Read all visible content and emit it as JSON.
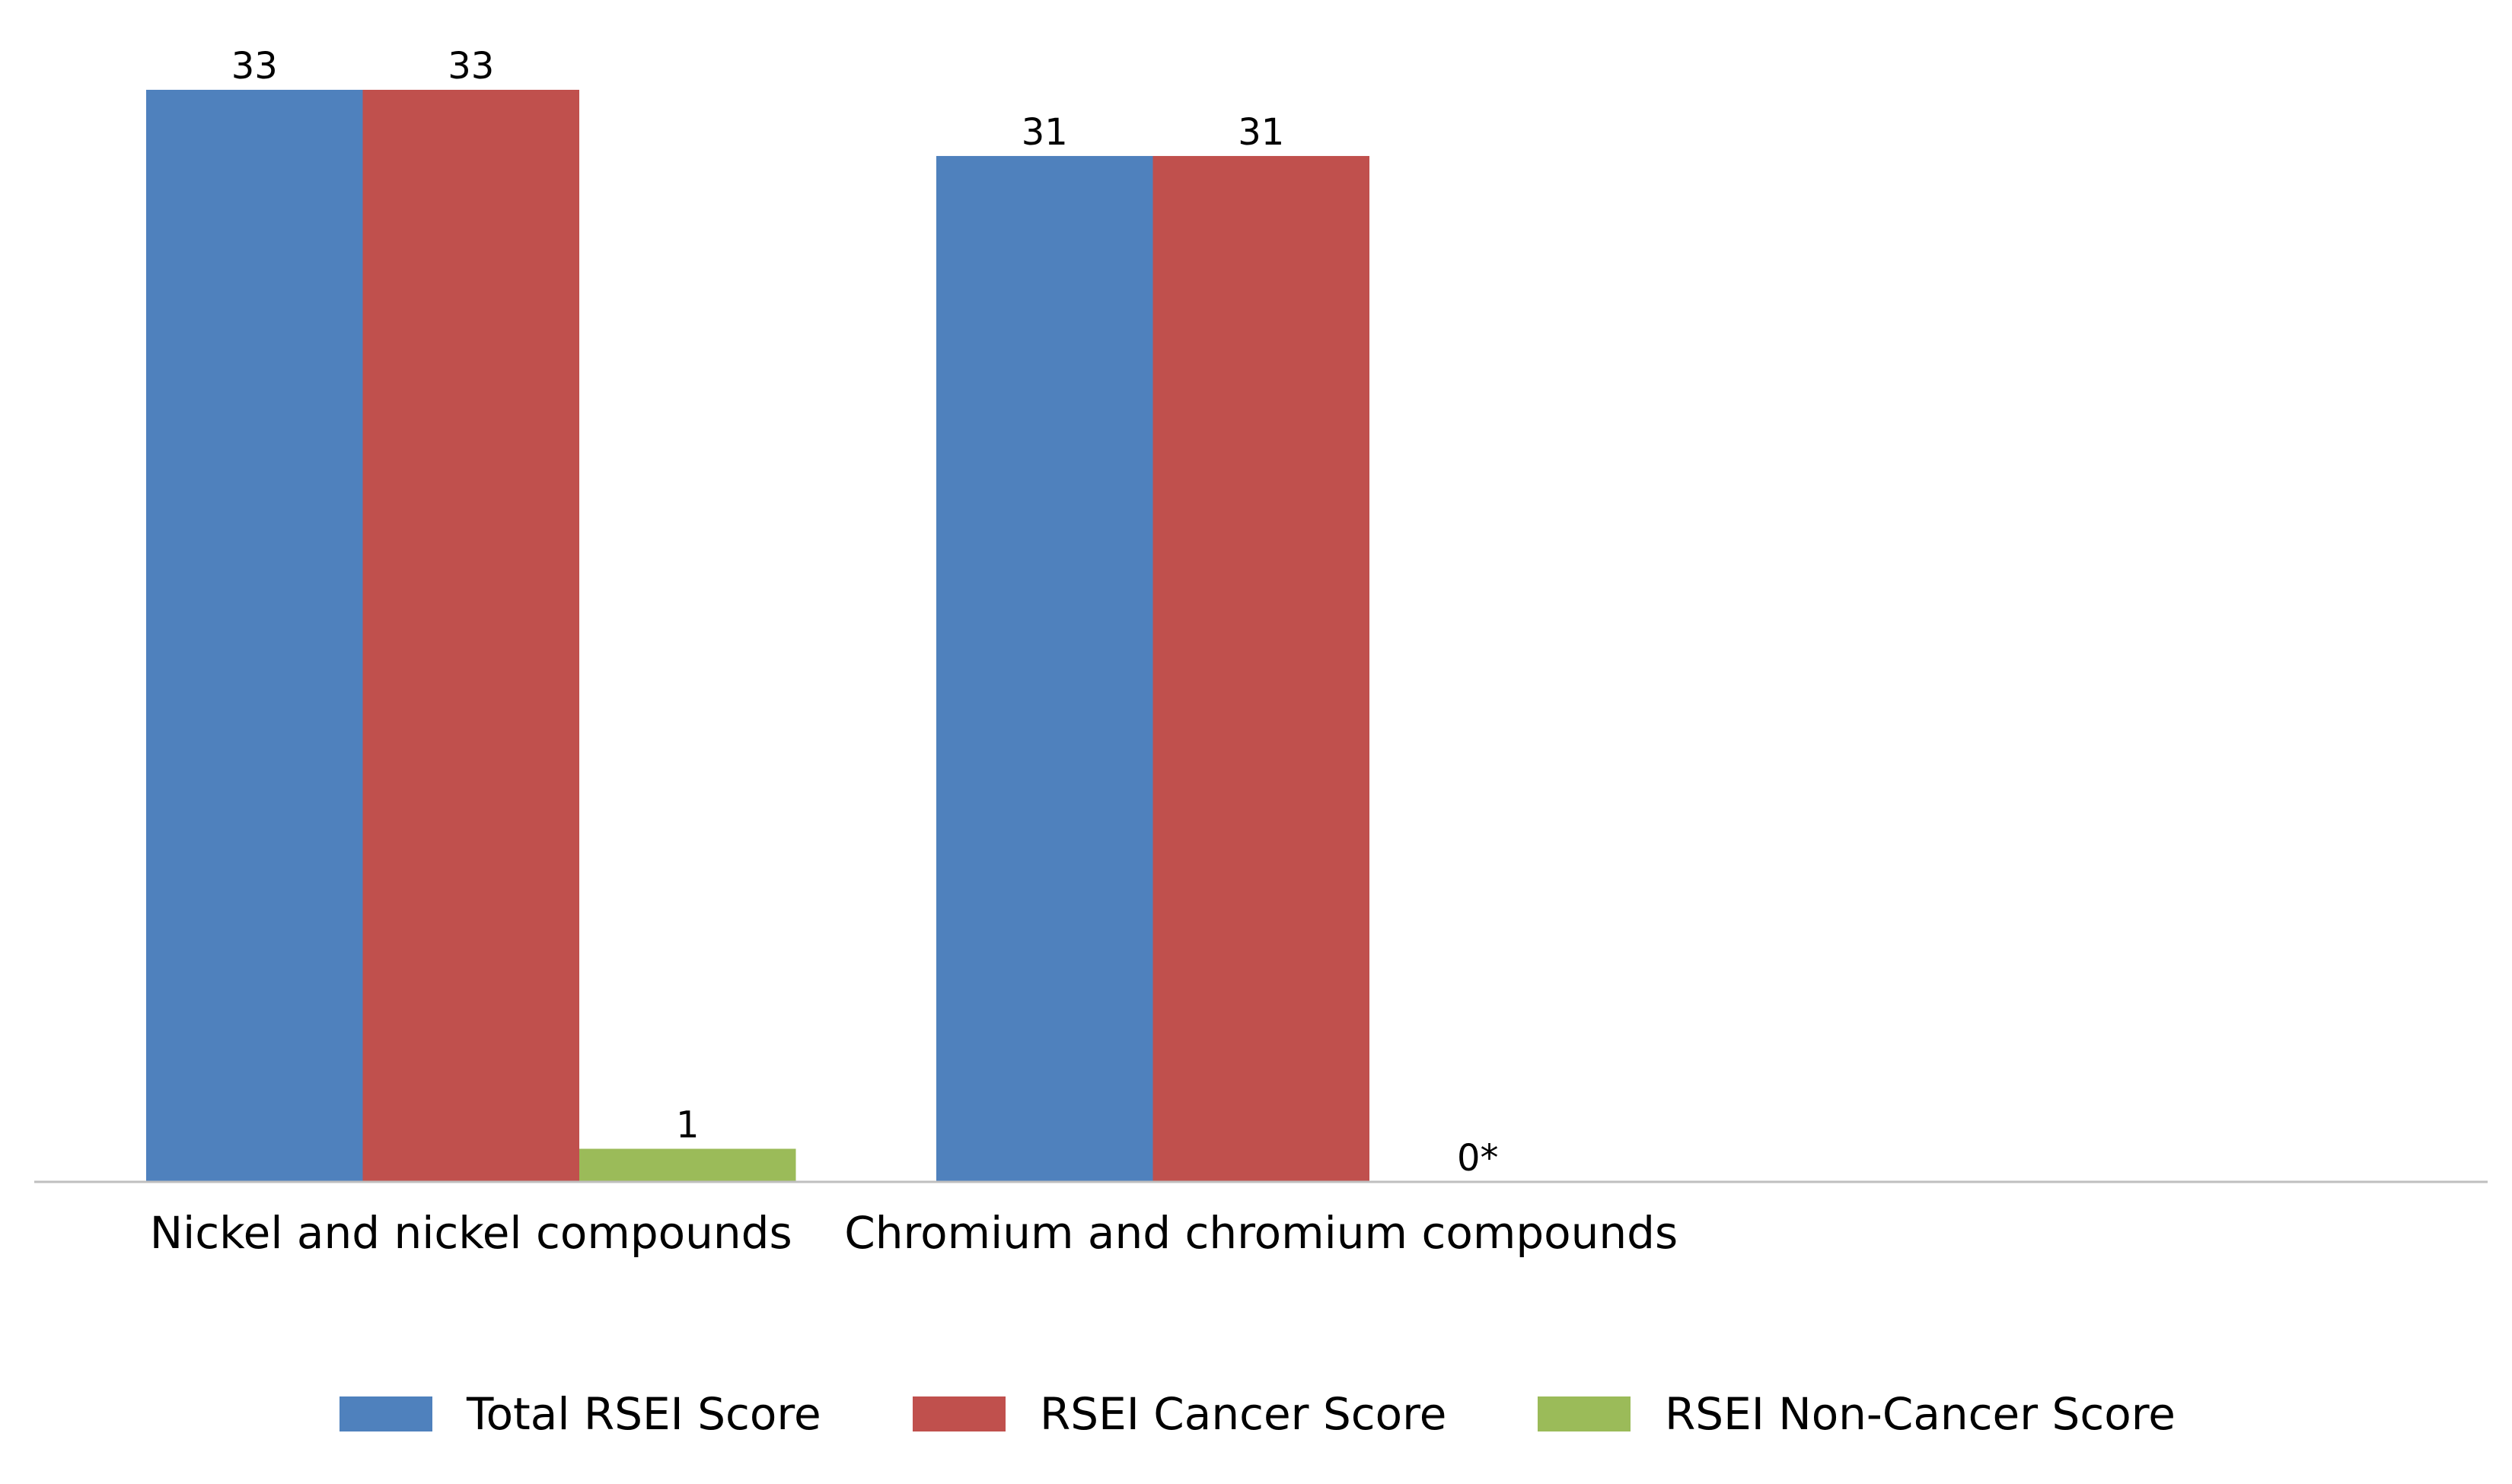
{
  "chart_data": {
    "type": "bar",
    "title": "",
    "xlabel": "",
    "ylabel": "",
    "ylim": [
      0,
      33
    ],
    "grid": false,
    "legend_position": "bottom",
    "categories": [
      "Nickel and nickel compounds",
      "Chromium and chromium compounds"
    ],
    "series": [
      {
        "name": "Total RSEI Score",
        "color": "#4F81BD",
        "values": [
          33,
          31
        ],
        "labels": [
          "33",
          "31"
        ]
      },
      {
        "name": "RSEI Cancer Score",
        "color": "#C0504D",
        "values": [
          33,
          31
        ],
        "labels": [
          "33",
          "31"
        ]
      },
      {
        "name": "RSEI Non-Cancer Score",
        "color": "#9BBB59",
        "values": [
          1,
          0
        ],
        "labels": [
          "1",
          "0*"
        ]
      }
    ]
  }
}
